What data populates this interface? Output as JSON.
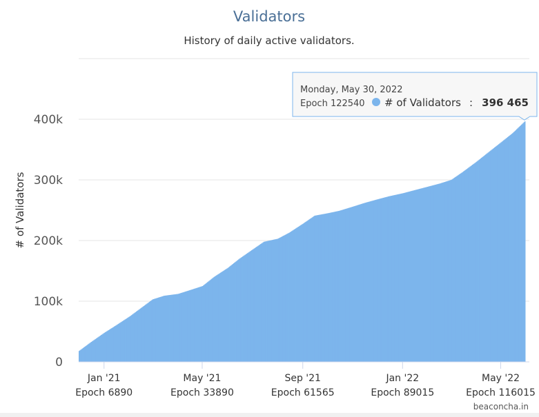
{
  "chart_data": {
    "type": "bar",
    "title": "Validators",
    "subtitle": "History of daily active validators.",
    "xlabel": "",
    "ylabel": "# of Validators",
    "ylim": [
      0,
      500000
    ],
    "yticks": [
      {
        "value": 0,
        "label": "0"
      },
      {
        "value": 100000,
        "label": "100k"
      },
      {
        "value": 200000,
        "label": "200k"
      },
      {
        "value": 300000,
        "label": "300k"
      },
      {
        "value": 400000,
        "label": "400k"
      }
    ],
    "xlim": [
      "2020-12-01",
      "2022-06-05"
    ],
    "xticks": [
      {
        "date": "2021-01-01",
        "label": "Jan '21",
        "epoch": "Epoch 6890"
      },
      {
        "date": "2021-05-01",
        "label": "May '21",
        "epoch": "Epoch 33890"
      },
      {
        "date": "2021-09-01",
        "label": "Sep '21",
        "epoch": "Epoch 61565"
      },
      {
        "date": "2022-01-01",
        "label": "Jan '22",
        "epoch": "Epoch 89015"
      },
      {
        "date": "2022-05-01",
        "label": "May '22",
        "epoch": "Epoch 116015"
      }
    ],
    "series": [
      {
        "name": "# of Validators",
        "color": "#7cb5ec",
        "points": [
          {
            "date": "2020-12-01",
            "value": 18000
          },
          {
            "date": "2020-12-15",
            "value": 32000
          },
          {
            "date": "2021-01-01",
            "value": 48000
          },
          {
            "date": "2021-01-15",
            "value": 60000
          },
          {
            "date": "2021-02-01",
            "value": 75000
          },
          {
            "date": "2021-02-15",
            "value": 89000
          },
          {
            "date": "2021-03-01",
            "value": 103000
          },
          {
            "date": "2021-03-15",
            "value": 109000
          },
          {
            "date": "2021-04-01",
            "value": 112000
          },
          {
            "date": "2021-04-15",
            "value": 118000
          },
          {
            "date": "2021-05-01",
            "value": 125000
          },
          {
            "date": "2021-05-15",
            "value": 140000
          },
          {
            "date": "2021-06-01",
            "value": 155000
          },
          {
            "date": "2021-06-15",
            "value": 170000
          },
          {
            "date": "2021-07-01",
            "value": 185000
          },
          {
            "date": "2021-07-15",
            "value": 198000
          },
          {
            "date": "2021-08-01",
            "value": 203000
          },
          {
            "date": "2021-08-15",
            "value": 213000
          },
          {
            "date": "2021-09-01",
            "value": 228000
          },
          {
            "date": "2021-09-15",
            "value": 241000
          },
          {
            "date": "2021-10-01",
            "value": 245000
          },
          {
            "date": "2021-10-15",
            "value": 249000
          },
          {
            "date": "2021-11-01",
            "value": 256000
          },
          {
            "date": "2021-11-15",
            "value": 262000
          },
          {
            "date": "2021-12-01",
            "value": 268000
          },
          {
            "date": "2021-12-15",
            "value": 273000
          },
          {
            "date": "2022-01-01",
            "value": 278000
          },
          {
            "date": "2022-01-15",
            "value": 283000
          },
          {
            "date": "2022-02-01",
            "value": 289000
          },
          {
            "date": "2022-02-15",
            "value": 294000
          },
          {
            "date": "2022-03-01",
            "value": 300000
          },
          {
            "date": "2022-03-15",
            "value": 313000
          },
          {
            "date": "2022-04-01",
            "value": 330000
          },
          {
            "date": "2022-04-15",
            "value": 345000
          },
          {
            "date": "2022-05-01",
            "value": 362000
          },
          {
            "date": "2022-05-15",
            "value": 377000
          },
          {
            "date": "2022-05-30",
            "value": 396465
          }
        ]
      }
    ],
    "tooltip": {
      "date": "Monday, May 30, 2022",
      "epoch": "Epoch 122540",
      "series_name": "# of Validators",
      "separator": ":",
      "value": "396 465",
      "at_date": "2022-05-30",
      "at_value": 396465
    },
    "credit": "beaconcha.in",
    "grid": true,
    "legend": "none"
  }
}
